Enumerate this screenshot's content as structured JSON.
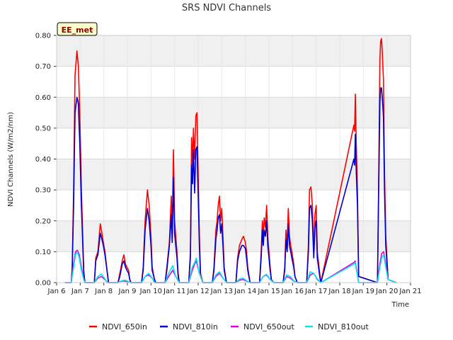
{
  "chart_data": {
    "type": "line",
    "title": "SRS NDVI Channels",
    "badge": "EE_met",
    "xlabel": "Time",
    "ylabel": "NDVI Channels (W/m2/nm)",
    "xlim": [
      6.0,
      21.0
    ],
    "ylim": [
      0.0,
      0.8
    ],
    "x_ticks": [
      6,
      7,
      8,
      9,
      10,
      11,
      12,
      13,
      14,
      15,
      16,
      17,
      18,
      19,
      20,
      21
    ],
    "x_tick_labels": [
      "Jan 6",
      "Jan 7",
      "Jan 8",
      "Jan 9",
      "Jan 10",
      "Jan 11",
      "Jan 12",
      "Jan 13",
      "Jan 14",
      "Jan 15",
      "Jan 16",
      "Jan 17",
      "Jan 18",
      "Jan 19",
      "Jan 20",
      "Jan 21"
    ],
    "y_ticks": [
      0.0,
      0.1,
      0.2,
      0.3,
      0.4,
      0.5,
      0.6,
      0.7,
      0.8
    ],
    "y_tick_labels": [
      "0.00",
      "0.10",
      "0.20",
      "0.30",
      "0.40",
      "0.50",
      "0.60",
      "0.70",
      "0.80"
    ],
    "grid": true,
    "legend_position": "bottom",
    "series": [
      {
        "name": "NDVI_650in",
        "color": "#ff0000",
        "x": [
          6.35,
          6.62,
          6.66,
          6.72,
          6.78,
          6.86,
          6.92,
          6.98,
          7.05,
          7.15,
          7.2,
          7.6,
          7.66,
          7.75,
          7.85,
          7.92,
          7.98,
          8.05,
          8.15,
          8.2,
          8.6,
          8.68,
          8.78,
          8.85,
          8.92,
          8.98,
          9.05,
          9.1,
          9.15,
          9.6,
          9.67,
          9.75,
          9.85,
          9.92,
          10.0,
          10.05,
          10.15,
          10.2,
          10.6,
          10.67,
          10.78,
          10.86,
          10.9,
          10.95,
          11.0,
          11.05,
          11.1,
          11.15,
          11.2,
          11.6,
          11.67,
          11.72,
          11.76,
          11.8,
          11.85,
          11.9,
          11.95,
          12.0,
          12.05,
          12.1,
          12.2,
          12.6,
          12.67,
          12.75,
          12.8,
          12.85,
          12.9,
          12.95,
          13.0,
          13.05,
          13.1,
          13.2,
          13.6,
          13.67,
          13.75,
          13.85,
          13.92,
          14.0,
          14.05,
          14.1,
          14.2,
          14.6,
          14.67,
          14.72,
          14.76,
          14.8,
          14.85,
          14.9,
          14.95,
          15.0,
          15.05,
          15.1,
          15.2,
          15.6,
          15.67,
          15.72,
          15.77,
          15.82,
          15.87,
          15.92,
          15.97,
          16.05,
          16.1,
          16.2,
          16.6,
          16.67,
          16.72,
          16.78,
          16.84,
          16.9,
          16.95,
          17.0,
          17.05,
          17.15,
          17.2,
          18.6,
          18.63,
          18.66,
          18.7,
          18.75,
          18.8,
          19.6,
          19.65,
          19.7,
          19.73,
          19.77,
          19.8,
          19.85,
          19.9,
          19.95,
          20.05,
          20.4
        ],
        "y": [
          0.0,
          0.0,
          0.05,
          0.3,
          0.67,
          0.75,
          0.7,
          0.55,
          0.3,
          0.04,
          0.0,
          0.0,
          0.08,
          0.1,
          0.19,
          0.16,
          0.13,
          0.1,
          0.03,
          0.0,
          0.0,
          0.03,
          0.07,
          0.09,
          0.06,
          0.05,
          0.04,
          0.01,
          0.0,
          0.0,
          0.05,
          0.2,
          0.3,
          0.25,
          0.15,
          0.05,
          0.01,
          0.0,
          0.0,
          0.05,
          0.13,
          0.28,
          0.15,
          0.43,
          0.2,
          0.15,
          0.1,
          0.03,
          0.0,
          0.0,
          0.1,
          0.47,
          0.38,
          0.5,
          0.4,
          0.54,
          0.55,
          0.35,
          0.15,
          0.03,
          0.0,
          0.0,
          0.05,
          0.17,
          0.2,
          0.25,
          0.28,
          0.2,
          0.24,
          0.15,
          0.05,
          0.0,
          0.0,
          0.08,
          0.12,
          0.14,
          0.15,
          0.13,
          0.1,
          0.05,
          0.0,
          0.0,
          0.1,
          0.2,
          0.15,
          0.21,
          0.18,
          0.25,
          0.15,
          0.1,
          0.05,
          0.01,
          0.0,
          0.0,
          0.05,
          0.17,
          0.12,
          0.24,
          0.15,
          0.12,
          0.1,
          0.06,
          0.02,
          0.0,
          0.0,
          0.12,
          0.3,
          0.31,
          0.25,
          0.1,
          0.22,
          0.25,
          0.1,
          0.03,
          0.0,
          0.51,
          0.49,
          0.61,
          0.45,
          0.3,
          0.02,
          0.0,
          0.33,
          0.72,
          0.78,
          0.79,
          0.75,
          0.66,
          0.35,
          0.15,
          0.01,
          0.0
        ]
      },
      {
        "name": "NDVI_810in",
        "color": "#0000cc",
        "x": [
          6.35,
          6.62,
          6.66,
          6.72,
          6.78,
          6.86,
          6.92,
          6.98,
          7.05,
          7.15,
          7.2,
          7.6,
          7.66,
          7.75,
          7.85,
          7.92,
          7.98,
          8.05,
          8.15,
          8.2,
          8.6,
          8.68,
          8.78,
          8.85,
          8.92,
          8.98,
          9.05,
          9.1,
          9.15,
          9.6,
          9.67,
          9.75,
          9.85,
          9.92,
          10.0,
          10.05,
          10.15,
          10.2,
          10.6,
          10.67,
          10.78,
          10.86,
          10.9,
          10.95,
          11.0,
          11.05,
          11.1,
          11.15,
          11.2,
          11.6,
          11.67,
          11.72,
          11.76,
          11.8,
          11.85,
          11.9,
          11.95,
          12.0,
          12.05,
          12.1,
          12.2,
          12.6,
          12.67,
          12.75,
          12.8,
          12.85,
          12.9,
          12.95,
          13.0,
          13.05,
          13.1,
          13.2,
          13.6,
          13.67,
          13.75,
          13.85,
          13.92,
          14.0,
          14.05,
          14.1,
          14.2,
          14.6,
          14.67,
          14.72,
          14.76,
          14.8,
          14.85,
          14.9,
          14.95,
          15.0,
          15.05,
          15.1,
          15.2,
          15.6,
          15.67,
          15.72,
          15.77,
          15.82,
          15.87,
          15.92,
          15.97,
          16.05,
          16.1,
          16.2,
          16.6,
          16.67,
          16.72,
          16.78,
          16.84,
          16.9,
          16.95,
          17.0,
          17.05,
          17.15,
          17.2,
          18.6,
          18.63,
          18.66,
          18.7,
          18.75,
          18.8,
          19.6,
          19.65,
          19.7,
          19.73,
          19.77,
          19.8,
          19.85,
          19.9,
          19.95,
          20.05,
          20.4
        ],
        "y": [
          0.0,
          0.0,
          0.04,
          0.25,
          0.55,
          0.6,
          0.58,
          0.45,
          0.25,
          0.03,
          0.0,
          0.0,
          0.07,
          0.09,
          0.16,
          0.14,
          0.12,
          0.09,
          0.03,
          0.0,
          0.0,
          0.02,
          0.06,
          0.07,
          0.05,
          0.04,
          0.03,
          0.01,
          0.0,
          0.0,
          0.04,
          0.17,
          0.24,
          0.2,
          0.12,
          0.04,
          0.01,
          0.0,
          0.0,
          0.04,
          0.12,
          0.22,
          0.13,
          0.34,
          0.16,
          0.12,
          0.08,
          0.02,
          0.0,
          0.0,
          0.08,
          0.38,
          0.32,
          0.43,
          0.29,
          0.43,
          0.44,
          0.28,
          0.12,
          0.02,
          0.0,
          0.0,
          0.04,
          0.14,
          0.17,
          0.21,
          0.22,
          0.16,
          0.19,
          0.12,
          0.04,
          0.0,
          0.0,
          0.07,
          0.1,
          0.12,
          0.12,
          0.11,
          0.08,
          0.04,
          0.0,
          0.0,
          0.08,
          0.17,
          0.12,
          0.17,
          0.15,
          0.2,
          0.12,
          0.08,
          0.04,
          0.01,
          0.0,
          0.0,
          0.04,
          0.14,
          0.1,
          0.19,
          0.12,
          0.1,
          0.08,
          0.05,
          0.02,
          0.0,
          0.0,
          0.1,
          0.24,
          0.25,
          0.2,
          0.08,
          0.18,
          0.2,
          0.08,
          0.02,
          0.0,
          0.4,
          0.38,
          0.48,
          0.36,
          0.25,
          0.02,
          0.0,
          0.3,
          0.58,
          0.63,
          0.63,
          0.6,
          0.54,
          0.29,
          0.12,
          0.01,
          0.0
        ]
      },
      {
        "name": "NDVI_650out",
        "color": "#dd00dd",
        "x": [
          6.35,
          6.62,
          6.7,
          6.8,
          6.88,
          6.96,
          7.05,
          7.15,
          7.2,
          7.6,
          7.75,
          7.9,
          8.05,
          8.15,
          8.2,
          8.6,
          8.75,
          8.9,
          9.05,
          9.15,
          9.6,
          9.75,
          9.9,
          10.05,
          10.15,
          10.2,
          10.6,
          10.75,
          10.92,
          11.05,
          11.2,
          11.6,
          11.75,
          11.85,
          11.92,
          12.05,
          12.2,
          12.6,
          12.75,
          12.9,
          13.05,
          13.2,
          13.6,
          13.75,
          13.9,
          14.05,
          14.2,
          14.6,
          14.75,
          14.9,
          15.05,
          15.2,
          15.6,
          15.75,
          15.9,
          16.05,
          16.2,
          16.6,
          16.75,
          16.9,
          17.05,
          17.2,
          18.6,
          18.65,
          18.72,
          18.8,
          19.6,
          19.7,
          19.78,
          19.86,
          19.95,
          20.05,
          20.4
        ],
        "y": [
          0.0,
          0.0,
          0.05,
          0.1,
          0.105,
          0.09,
          0.05,
          0.01,
          0.0,
          0.0,
          0.015,
          0.02,
          0.01,
          0.0,
          0.0,
          0.0,
          0.005,
          0.005,
          0.002,
          0.0,
          0.0,
          0.02,
          0.025,
          0.015,
          0.0,
          0.0,
          0.0,
          0.02,
          0.04,
          0.02,
          0.0,
          0.0,
          0.04,
          0.06,
          0.07,
          0.03,
          0.0,
          0.0,
          0.02,
          0.03,
          0.015,
          0.0,
          0.0,
          0.008,
          0.01,
          0.005,
          0.0,
          0.0,
          0.02,
          0.025,
          0.01,
          0.0,
          0.0,
          0.02,
          0.015,
          0.005,
          0.0,
          0.0,
          0.025,
          0.03,
          0.01,
          0.0,
          0.065,
          0.07,
          0.04,
          0.0,
          0.0,
          0.06,
          0.095,
          0.1,
          0.06,
          0.01,
          0.0
        ]
      },
      {
        "name": "NDVI_810out",
        "color": "#00e5ee",
        "x": [
          6.35,
          6.62,
          6.7,
          6.8,
          6.88,
          6.96,
          7.05,
          7.15,
          7.2,
          7.6,
          7.75,
          7.9,
          8.05,
          8.15,
          8.2,
          8.6,
          8.75,
          8.9,
          9.05,
          9.15,
          9.6,
          9.75,
          9.9,
          10.05,
          10.15,
          10.2,
          10.6,
          10.75,
          10.92,
          11.05,
          11.2,
          11.6,
          11.75,
          11.85,
          11.92,
          12.05,
          12.2,
          12.6,
          12.75,
          12.9,
          13.05,
          13.2,
          13.6,
          13.75,
          13.9,
          14.05,
          14.2,
          14.6,
          14.75,
          14.9,
          15.05,
          15.2,
          15.6,
          15.75,
          15.9,
          16.05,
          16.2,
          16.6,
          16.75,
          16.9,
          17.05,
          17.2,
          18.6,
          18.65,
          18.72,
          18.8,
          19.6,
          19.7,
          19.78,
          19.86,
          19.95,
          20.05,
          20.4
        ],
        "y": [
          0.0,
          0.0,
          0.04,
          0.09,
          0.1,
          0.08,
          0.04,
          0.01,
          0.0,
          0.0,
          0.02,
          0.028,
          0.012,
          0.0,
          0.0,
          0.0,
          0.006,
          0.008,
          0.003,
          0.0,
          0.0,
          0.02,
          0.03,
          0.015,
          0.0,
          0.0,
          0.0,
          0.03,
          0.055,
          0.02,
          0.0,
          0.0,
          0.05,
          0.065,
          0.08,
          0.03,
          0.0,
          0.0,
          0.025,
          0.035,
          0.015,
          0.0,
          0.0,
          0.012,
          0.015,
          0.006,
          0.0,
          0.0,
          0.02,
          0.027,
          0.01,
          0.0,
          0.0,
          0.025,
          0.02,
          0.006,
          0.0,
          0.0,
          0.035,
          0.03,
          0.012,
          0.0,
          0.06,
          0.065,
          0.035,
          0.0,
          0.0,
          0.05,
          0.08,
          0.09,
          0.05,
          0.01,
          0.0
        ]
      }
    ]
  }
}
